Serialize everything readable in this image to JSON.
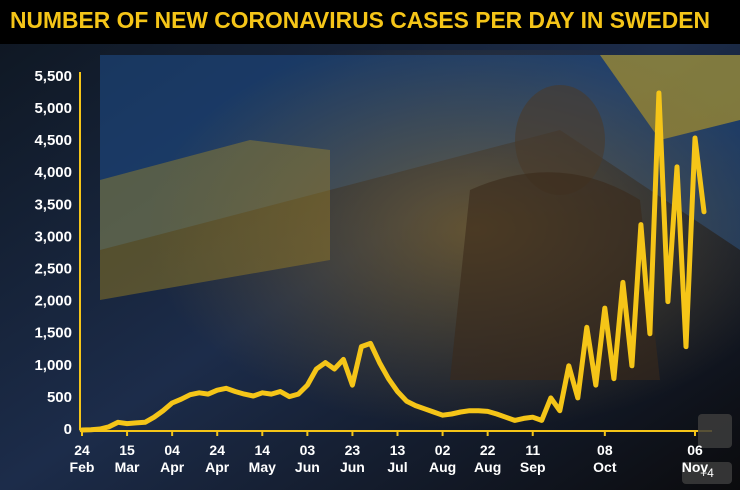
{
  "chart_data": {
    "type": "line",
    "title": "NUMBER OF NEW CORONAVIRUS CASES PER DAY IN SWEDEN",
    "categories": [
      "24 Feb",
      null,
      null,
      null,
      null,
      "15 Mar",
      null,
      null,
      null,
      null,
      "04 Apr",
      null,
      null,
      null,
      null,
      "24 Apr",
      null,
      null,
      null,
      null,
      "14 May",
      null,
      null,
      null,
      null,
      "03 Jun",
      null,
      null,
      null,
      null,
      "23 Jun",
      null,
      null,
      null,
      null,
      "13 Jul",
      null,
      null,
      null,
      null,
      "02 Aug",
      null,
      null,
      null,
      null,
      "22 Aug",
      null,
      null,
      null,
      null,
      "11 Sep",
      null,
      null,
      null,
      null,
      null,
      null,
      null,
      "08 Oct",
      null,
      null,
      null,
      null,
      null,
      null,
      null,
      null,
      null,
      "06 Nov",
      null
    ],
    "values": [
      0,
      5,
      15,
      50,
      120,
      100,
      110,
      120,
      200,
      300,
      420,
      480,
      550,
      580,
      560,
      620,
      650,
      600,
      560,
      530,
      580,
      560,
      600,
      520,
      560,
      700,
      950,
      1050,
      950,
      1100,
      700,
      1300,
      1350,
      1050,
      800,
      600,
      450,
      380,
      330,
      280,
      230,
      250,
      280,
      300,
      300,
      290,
      250,
      200,
      150,
      180,
      200,
      150,
      500,
      300,
      1000,
      500,
      1600,
      700,
      1900,
      800,
      2300,
      1000,
      3200,
      1500,
      5250,
      2000,
      4100,
      1300,
      4550,
      3400
    ],
    "color": "#f5c518",
    "ylim": [
      0,
      5500
    ],
    "yticks": [
      0,
      500,
      {
        "value": 1000,
        "label": "1,000"
      },
      {
        "value": 1500,
        "label": "1,500"
      },
      {
        "value": 2000,
        "label": "2,000"
      },
      {
        "value": 2500,
        "label": "2,500"
      },
      {
        "value": 3000,
        "label": "3,000"
      },
      {
        "value": 3500,
        "label": "3,500"
      },
      {
        "value": 4000,
        "label": "4,000"
      },
      {
        "value": 4500,
        "label": "4,500"
      },
      {
        "value": 5000,
        "label": "5,000"
      },
      {
        "value": 5500,
        "label": "5,500"
      }
    ],
    "badge": "+4"
  }
}
